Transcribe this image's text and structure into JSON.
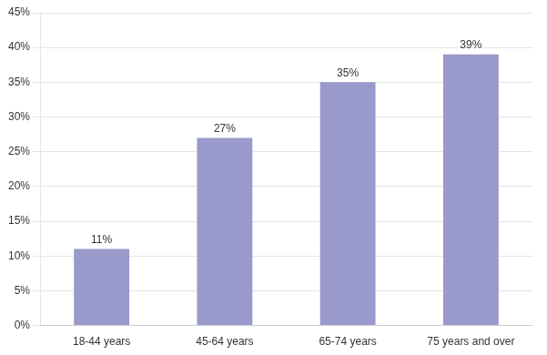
{
  "chart_data": {
    "type": "bar",
    "categories": [
      "18-44 years",
      "45-64 years",
      "65-74 years",
      "75 years and over"
    ],
    "values": [
      11,
      27,
      35,
      39
    ],
    "value_labels": [
      "11%",
      "27%",
      "35%",
      "39%"
    ],
    "data_labels": true,
    "color": "#9999cc",
    "ylim": [
      0,
      45
    ],
    "yticks": [
      {
        "value": 0,
        "label": "0%"
      },
      {
        "value": 5,
        "label": "5%"
      },
      {
        "value": 10,
        "label": "10%"
      },
      {
        "value": 15,
        "label": "15%"
      },
      {
        "value": 20,
        "label": "20%"
      },
      {
        "value": 25,
        "label": "25%"
      },
      {
        "value": 30,
        "label": "30%"
      },
      {
        "value": 35,
        "label": "35%"
      },
      {
        "value": 40,
        "label": "40%"
      },
      {
        "value": 45,
        "label": "45%"
      }
    ],
    "grid": true
  }
}
